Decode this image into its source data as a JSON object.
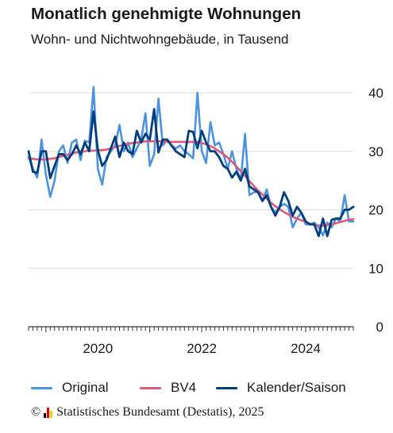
{
  "chart_data": {
    "type": "line",
    "title": "Monatlich genehmigte Wohnungen",
    "subtitle": "Wohn- und Nichtwohngebäude, in Tausend",
    "x_tick_labels": [
      "2020",
      "2022",
      "2024"
    ],
    "y_tick_labels": [
      "0",
      "10",
      "20",
      "30",
      "40"
    ],
    "xlim": [
      "2018-09",
      "2024-12"
    ],
    "ylim": [
      0,
      40
    ],
    "grid": true,
    "y_axis_side": "right",
    "legend_position": "bottom",
    "x": [
      "2018-09",
      "2018-10",
      "2018-11",
      "2018-12",
      "2019-01",
      "2019-02",
      "2019-03",
      "2019-04",
      "2019-05",
      "2019-06",
      "2019-07",
      "2019-08",
      "2019-09",
      "2019-10",
      "2019-11",
      "2019-12",
      "2020-01",
      "2020-02",
      "2020-03",
      "2020-04",
      "2020-05",
      "2020-06",
      "2020-07",
      "2020-08",
      "2020-09",
      "2020-10",
      "2020-11",
      "2020-12",
      "2021-01",
      "2021-02",
      "2021-03",
      "2021-04",
      "2021-05",
      "2021-06",
      "2021-07",
      "2021-08",
      "2021-09",
      "2021-10",
      "2021-11",
      "2021-12",
      "2022-01",
      "2022-02",
      "2022-03",
      "2022-04",
      "2022-05",
      "2022-06",
      "2022-07",
      "2022-08",
      "2022-09",
      "2022-10",
      "2022-11",
      "2022-12",
      "2023-01",
      "2023-02",
      "2023-03",
      "2023-04",
      "2023-05",
      "2023-06",
      "2023-07",
      "2023-08",
      "2023-09",
      "2023-10",
      "2023-11",
      "2023-12",
      "2024-01",
      "2024-02",
      "2024-03",
      "2024-04",
      "2024-05",
      "2024-06",
      "2024-07",
      "2024-08",
      "2024-09",
      "2024-10",
      "2024-11",
      "2024-12"
    ],
    "series": [
      {
        "name": "Original",
        "color": "#4b93dc",
        "values": [
          29.0,
          27.0,
          25.5,
          32.0,
          26.0,
          22.2,
          25.0,
          30.0,
          31.0,
          28.0,
          31.5,
          32.0,
          28.5,
          31.8,
          31.5,
          41.0,
          27.0,
          24.3,
          29.0,
          30.0,
          31.0,
          34.5,
          30.0,
          31.5,
          29.0,
          30.5,
          32.0,
          36.5,
          27.5,
          29.5,
          39.0,
          31.0,
          32.0,
          31.0,
          30.5,
          31.0,
          30.0,
          29.5,
          28.8,
          40.0,
          30.0,
          28.0,
          35.0,
          31.0,
          31.5,
          29.5,
          27.0,
          30.0,
          27.0,
          25.0,
          33.0,
          22.5,
          23.0,
          23.0,
          21.5,
          23.5,
          20.5,
          19.5,
          20.5,
          21.0,
          20.5,
          17.0,
          18.5,
          19.5,
          17.5,
          17.5,
          17.8,
          17.0,
          15.6,
          17.8,
          17.0,
          18.5,
          18.0,
          22.5,
          18.0,
          18.0
        ]
      },
      {
        "name": "BV4",
        "color": "#dc5b78",
        "values": [
          28.8,
          28.7,
          28.6,
          28.6,
          28.6,
          28.7,
          28.8,
          29.0,
          29.2,
          29.4,
          29.6,
          29.8,
          29.9,
          30.0,
          30.1,
          30.1,
          30.2,
          30.2,
          30.3,
          30.5,
          30.7,
          30.9,
          31.1,
          31.3,
          31.4,
          31.5,
          31.6,
          31.7,
          31.7,
          31.7,
          31.7,
          31.7,
          31.6,
          31.6,
          31.6,
          31.6,
          31.6,
          31.6,
          31.6,
          31.6,
          31.4,
          31.2,
          30.9,
          30.5,
          30.0,
          29.5,
          28.9,
          28.2,
          27.4,
          26.6,
          25.8,
          24.9,
          24.1,
          23.3,
          22.6,
          21.9,
          21.2,
          20.6,
          20.1,
          19.6,
          19.2,
          18.8,
          18.5,
          18.2,
          17.9,
          17.6,
          17.4,
          17.3,
          17.3,
          17.4,
          17.5,
          17.7,
          17.9,
          18.1,
          18.3,
          18.4
        ]
      },
      {
        "name": "Kalender/Saison",
        "color": "#003d7d",
        "values": [
          30.0,
          26.5,
          26.3,
          30.0,
          30.0,
          25.4,
          27.5,
          29.5,
          29.5,
          28.5,
          29.5,
          31.0,
          29.5,
          31.5,
          30.0,
          36.8,
          30.2,
          27.5,
          28.5,
          30.5,
          32.5,
          29.0,
          31.5,
          30.0,
          29.5,
          33.5,
          31.5,
          33.0,
          32.0,
          37.2,
          29.8,
          32.0,
          32.0,
          31.0,
          30.0,
          29.5,
          29.0,
          33.5,
          33.3,
          30.5,
          33.5,
          31.5,
          30.0,
          30.0,
          29.0,
          27.5,
          27.0,
          25.5,
          26.5,
          25.0,
          27.0,
          24.0,
          23.5,
          23.0,
          21.5,
          22.5,
          20.5,
          19.0,
          20.5,
          23.0,
          21.5,
          19.0,
          20.5,
          19.5,
          18.0,
          17.5,
          17.5,
          15.5,
          18.5,
          15.5,
          18.3,
          18.5,
          18.5,
          20.0,
          20.0,
          20.5
        ]
      }
    ]
  },
  "footer": {
    "copyright_symbol": "©",
    "source_text": "Statistisches Bundesamt (Destatis), 2025",
    "logo_colors": [
      "#000000",
      "#dd0000",
      "#ffcc00"
    ]
  }
}
